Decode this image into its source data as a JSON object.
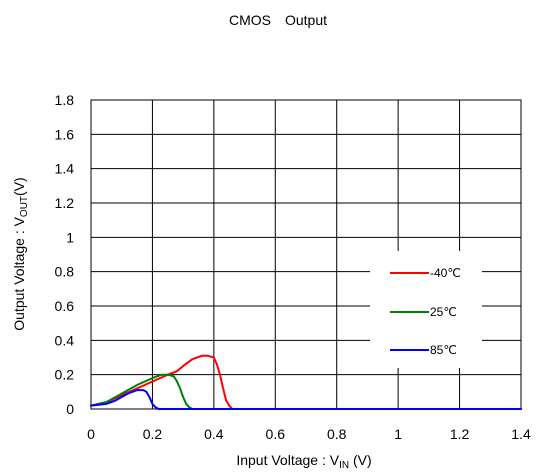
{
  "chart_data": {
    "type": "line",
    "title": "CMOS　Output",
    "xlabel": {
      "main": "Input Voltage : V",
      "sub": "IN",
      "tail": " (V)"
    },
    "ylabel": {
      "main": "Output Voltage : V",
      "sub": "OUT",
      "tail": "(V)"
    },
    "xlim": [
      0,
      1.4
    ],
    "ylim": [
      0,
      1.8
    ],
    "xticks": [
      "0",
      "0.2",
      "0.4",
      "0.6",
      "0.8",
      "1",
      "1.2",
      "1.4"
    ],
    "yticks": [
      "0",
      "0.2",
      "0.4",
      "0.6",
      "0.8",
      "1",
      "1.2",
      "1.4",
      "1.6",
      "1.8"
    ],
    "grid": true,
    "legend_position": "right",
    "series": [
      {
        "name": "-40℃",
        "color": "#ff0000",
        "x": [
          0,
          0.05,
          0.1,
          0.15,
          0.2,
          0.25,
          0.28,
          0.3,
          0.33,
          0.36,
          0.38,
          0.4,
          0.41,
          0.42,
          0.43,
          0.44,
          0.45,
          0.46,
          0.5,
          1.4
        ],
        "y": [
          0.02,
          0.04,
          0.08,
          0.12,
          0.16,
          0.2,
          0.22,
          0.25,
          0.29,
          0.31,
          0.31,
          0.3,
          0.26,
          0.2,
          0.12,
          0.05,
          0.02,
          0.0,
          0.0,
          0.0
        ]
      },
      {
        "name": "25℃",
        "color": "#008000",
        "x": [
          0,
          0.05,
          0.1,
          0.15,
          0.2,
          0.23,
          0.25,
          0.27,
          0.28,
          0.29,
          0.3,
          0.31,
          0.32,
          0.33,
          0.35,
          1.4
        ],
        "y": [
          0.02,
          0.04,
          0.09,
          0.14,
          0.18,
          0.2,
          0.2,
          0.19,
          0.16,
          0.12,
          0.07,
          0.03,
          0.01,
          0.0,
          0.0,
          0.0
        ]
      },
      {
        "name": "85℃",
        "color": "#0000ff",
        "x": [
          0,
          0.05,
          0.08,
          0.1,
          0.12,
          0.15,
          0.17,
          0.18,
          0.19,
          0.2,
          0.21,
          0.22,
          0.25,
          1.4
        ],
        "y": [
          0.02,
          0.03,
          0.05,
          0.07,
          0.09,
          0.11,
          0.11,
          0.1,
          0.07,
          0.03,
          0.01,
          0.0,
          0.0,
          0.0
        ]
      }
    ]
  }
}
